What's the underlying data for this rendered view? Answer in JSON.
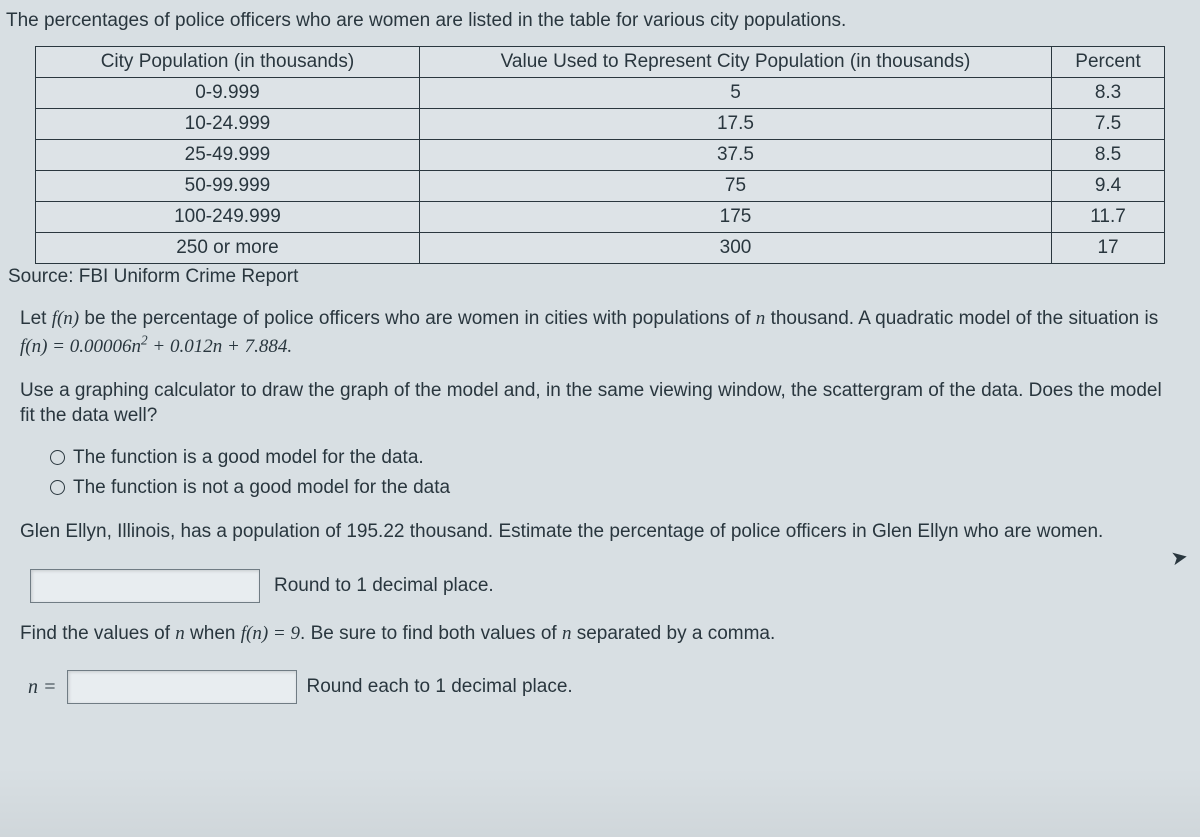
{
  "intro": "The percentages of police officers who are women are listed in the table for various city populations.",
  "table": {
    "headers": [
      "City Population (in thousands)",
      "Value Used to Represent City Population (in thousands)",
      "Percent"
    ],
    "rows": [
      [
        "0-9.999",
        "5",
        "8.3"
      ],
      [
        "10-24.999",
        "17.5",
        "7.5"
      ],
      [
        "25-49.999",
        "37.5",
        "8.5"
      ],
      [
        "50-99.999",
        "75",
        "9.4"
      ],
      [
        "100-249.999",
        "175",
        "11.7"
      ],
      [
        "250 or more",
        "300",
        "17"
      ]
    ],
    "col_widths": [
      "34%",
      "56%",
      "10%"
    ]
  },
  "source": "Source: FBI Uniform Crime Report",
  "para1_pre": "Let ",
  "para1_fn": "f(n)",
  "para1_mid": " be the percentage of police officers who are women in cities with populations of ",
  "para1_n": "n",
  "para1_post": " thousand. A quadratic model of the situation is ",
  "para1_formula": "f(n) = 0.00006n",
  "para1_exp": "2",
  "para1_tail": " + 0.012n + 7.884.",
  "para2": "Use a graphing calculator to draw the graph of the model and, in the same viewing window, the scattergram of the data. Does the model fit the data well?",
  "opt1": "The function is a good model for the data.",
  "opt2": "The function is not a good model for the data",
  "para3": "Glen Ellyn, Illinois, has a population of 195.22 thousand. Estimate the percentage of police officers in Glen Ellyn who are women.",
  "round1": "Round to 1 decimal place.",
  "para4_pre": "Find the values of ",
  "para4_n": "n",
  "para4_mid": " when ",
  "para4_fn": "f(n) = 9",
  "para4_post": ". Be sure to find both values of ",
  "para4_n2": "n",
  "para4_tail": " separated by a comma.",
  "nlabel": "n =",
  "round2": "Round each to 1 decimal place.",
  "colors": {
    "page_bg": "#d8dfe3",
    "text": "#29363e",
    "border": "#2a373f",
    "input_bg": "#e8edf0"
  }
}
